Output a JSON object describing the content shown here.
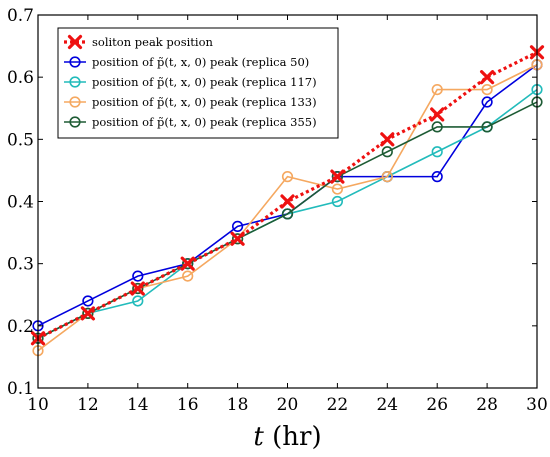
{
  "chart_data": {
    "type": "line",
    "xlabel": "t (hr)",
    "ylabel": "",
    "xlim": [
      10,
      30
    ],
    "ylim": [
      0.1,
      0.7
    ],
    "xticks": [
      "10",
      "12",
      "14",
      "16",
      "18",
      "20",
      "22",
      "24",
      "26",
      "28",
      "30"
    ],
    "yticks": [
      "0.1",
      "0.2",
      "0.3",
      "0.4",
      "0.5",
      "0.6",
      "0.7"
    ],
    "grid": false,
    "legend_position": "top-left",
    "x": [
      10,
      12,
      14,
      16,
      18,
      20,
      22,
      24,
      26,
      28,
      30
    ],
    "series": [
      {
        "name": "position of p̃(t, x, 0) peak (replica 50)",
        "color": "#0000dd",
        "style": "solid",
        "marker": "circle",
        "values": [
          0.2,
          0.24,
          0.28,
          0.3,
          0.36,
          0.38,
          0.44,
          0.44,
          0.44,
          0.56,
          0.62
        ]
      },
      {
        "name": "position of p̃(t, x, 0) peak (replica 117)",
        "color": "#22bbbb",
        "style": "solid",
        "marker": "circle",
        "values": [
          0.18,
          0.22,
          0.24,
          0.3,
          0.34,
          0.38,
          0.4,
          0.44,
          0.48,
          0.52,
          0.58
        ]
      },
      {
        "name": "position of p̃(t, x, 0) peak (replica 133)",
        "color": "#f5a860",
        "style": "solid",
        "marker": "circle",
        "values": [
          0.16,
          0.22,
          0.26,
          0.28,
          0.34,
          0.44,
          0.42,
          0.44,
          0.58,
          0.58,
          0.62
        ]
      },
      {
        "name": "position of p̃(t, x, 0) peak (replica 355)",
        "color": "#1e5c35",
        "style": "solid",
        "marker": "circle",
        "values": [
          0.18,
          0.22,
          0.26,
          0.3,
          0.34,
          0.38,
          0.44,
          0.48,
          0.52,
          0.52,
          0.56
        ]
      },
      {
        "name": "soliton peak position",
        "color": "#ee1111",
        "style": "dotted",
        "marker": "x",
        "values": [
          0.18,
          0.22,
          0.26,
          0.3,
          0.34,
          0.4,
          0.44,
          0.5,
          0.54,
          0.6,
          0.64
        ]
      }
    ],
    "legend_order": [
      "soliton peak position",
      "position of p̃(t, x, 0) peak (replica 50)",
      "position of p̃(t, x, 0) peak (replica 117)",
      "position of p̃(t, x, 0) peak (replica 133)",
      "position of p̃(t, x, 0) peak (replica 355)"
    ]
  }
}
